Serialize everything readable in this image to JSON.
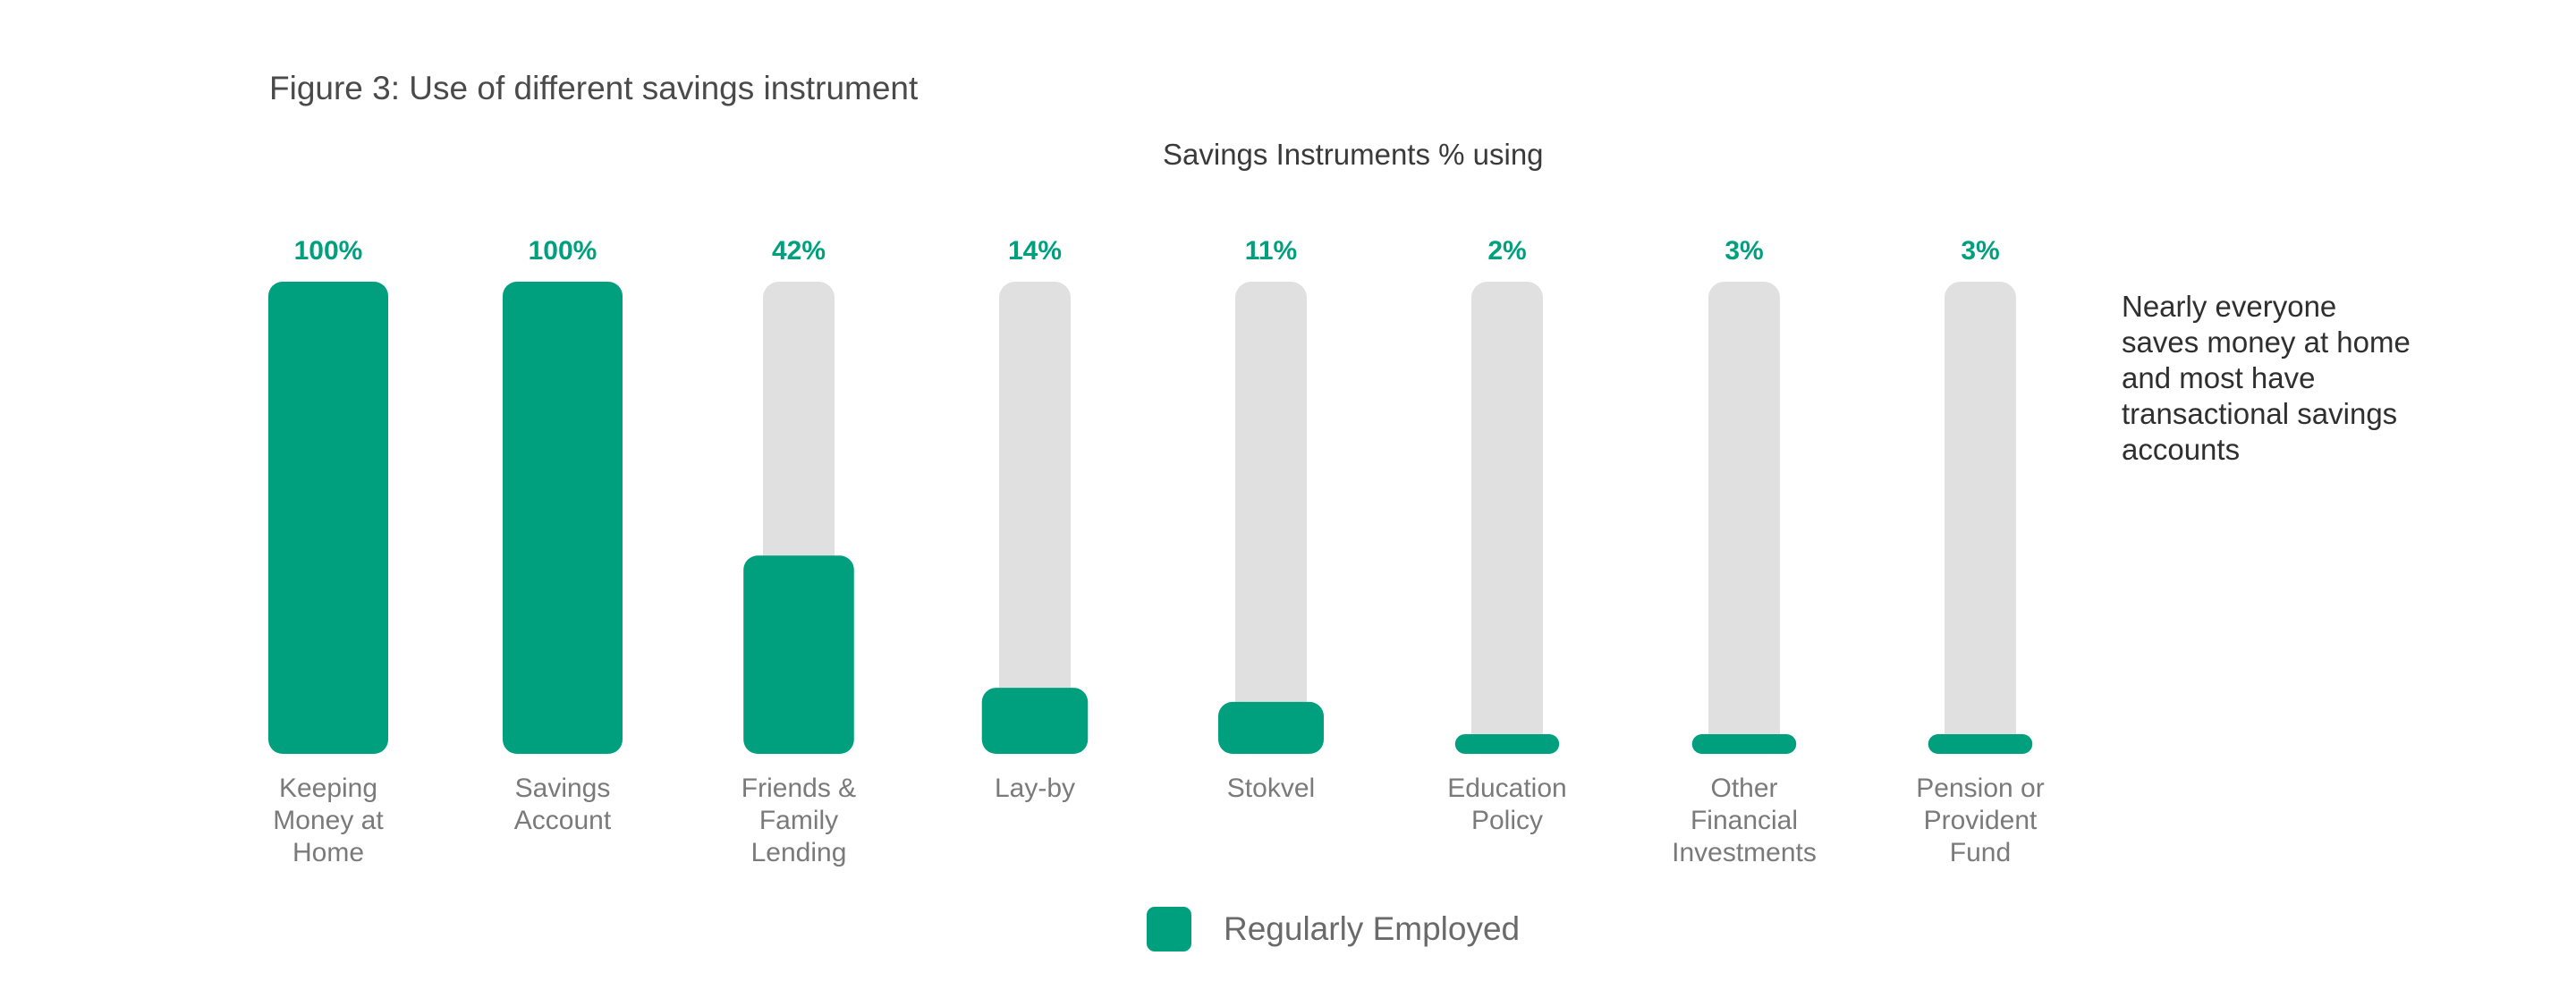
{
  "figure_title": "Figure 3: Use of different savings instrument",
  "annotation": "Nearly everyone saves money at home and most have transactional savings accounts",
  "colors": {
    "series": "#00a07e",
    "track": "#e0e0e0",
    "value_label": "#00a07e",
    "category_label": "#7a7a7a"
  },
  "chart_data": {
    "type": "bar",
    "title": "Savings Instruments % using",
    "categories": [
      [
        "Keeping",
        "Money at",
        "Home"
      ],
      [
        "Savings",
        "Account"
      ],
      [
        "Friends &",
        "Family",
        "Lending"
      ],
      [
        "Lay-by"
      ],
      [
        "Stokvel"
      ],
      [
        "Education",
        "Policy"
      ],
      [
        "Other",
        "Financial",
        "Investments"
      ],
      [
        "Pension or",
        "Provident",
        "Fund"
      ]
    ],
    "series": [
      {
        "name": "Regularly Employed",
        "values": [
          100,
          100,
          42,
          14,
          11,
          2,
          3,
          3
        ]
      }
    ],
    "value_labels": [
      "100%",
      "100%",
      "42%",
      "14%",
      "11%",
      "2%",
      "3%",
      "3%"
    ],
    "ylim": [
      0,
      100
    ],
    "grid": false,
    "legend": "bottom-center"
  }
}
